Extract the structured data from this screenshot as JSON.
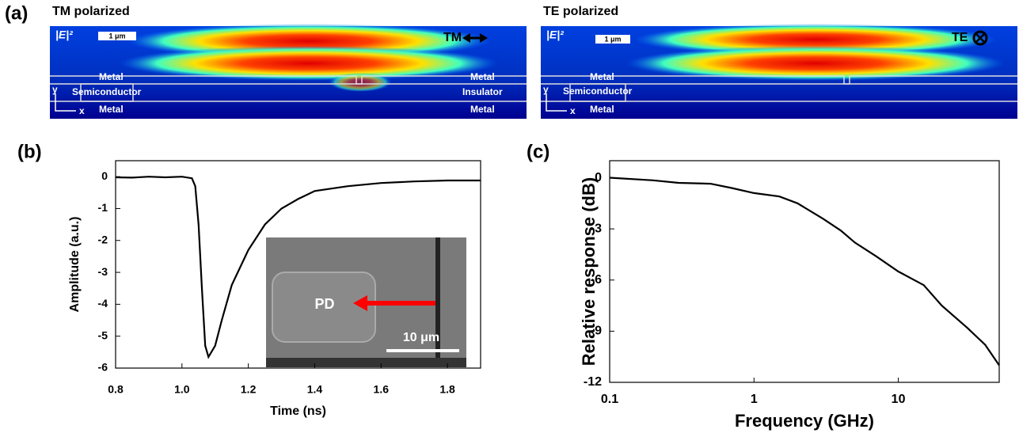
{
  "panel_a": {
    "label": "(a)",
    "maps": [
      {
        "title": "TM polarized",
        "field_label": "|E|²",
        "scale_bar": "1 μm",
        "polarization": "TM",
        "layers": {
          "top_left": "Metal",
          "top_right": "Metal",
          "mid_left": "Semiconductor",
          "mid_right": "Insulator",
          "bottom_left": "Metal",
          "bottom_right": "Metal"
        },
        "axes": {
          "y": "y",
          "x": "x"
        }
      },
      {
        "title": "TE polarized",
        "field_label": "|E|²",
        "scale_bar": "1 μm",
        "polarization": "TE",
        "layers": {
          "top_left": "Metal",
          "mid_left": "Semiconductor",
          "bottom_left": "Metal"
        },
        "axes": {
          "y": "y",
          "x": "x"
        }
      }
    ]
  },
  "chart_data": [
    {
      "type": "line",
      "panel_label": "(b)",
      "xlabel": "Time (ns)",
      "ylabel": "Amplitude (a.u.)",
      "color": "#000000",
      "x": [
        0.8,
        0.85,
        0.9,
        0.95,
        1.0,
        1.03,
        1.04,
        1.05,
        1.06,
        1.07,
        1.08,
        1.1,
        1.12,
        1.15,
        1.2,
        1.25,
        1.3,
        1.35,
        1.4,
        1.5,
        1.6,
        1.7,
        1.8,
        1.9
      ],
      "values": [
        -0.02,
        -0.03,
        0,
        -0.02,
        0,
        -0.05,
        -0.3,
        -1.5,
        -3.5,
        -5.3,
        -5.65,
        -5.3,
        -4.5,
        -3.4,
        -2.3,
        -1.5,
        -1.0,
        -0.7,
        -0.45,
        -0.3,
        -0.2,
        -0.15,
        -0.12,
        -0.12
      ],
      "xlim": [
        0.8,
        1.9
      ],
      "ylim": [
        -6,
        0.5
      ],
      "xticks": [
        0.8,
        {
          "value": 1,
          "label": "1.0"
        },
        1.2,
        1.4,
        1.6,
        1.8
      ],
      "yticks": [
        0,
        -1,
        -2,
        -3,
        -4,
        -5,
        -6
      ],
      "inset": {
        "label": "PD",
        "scale_bar": "10 μm"
      }
    },
    {
      "type": "line",
      "panel_label": "(c)",
      "xlabel": "Frequency (GHz)",
      "ylabel": "Relative response (dB)",
      "color": "#000000",
      "log_x": true,
      "x": [
        0.1,
        0.2,
        0.3,
        0.5,
        0.7,
        1,
        1.5,
        2,
        3,
        4,
        5,
        7,
        10,
        15,
        20,
        30,
        40,
        50
      ],
      "values": [
        0,
        -0.15,
        -0.3,
        -0.35,
        -0.6,
        -0.9,
        -1.1,
        -1.5,
        -2.4,
        -3.1,
        -3.8,
        -4.6,
        -5.5,
        -6.3,
        -7.5,
        -8.8,
        -9.8,
        -11
      ],
      "xlim": [
        0.1,
        50
      ],
      "ylim": [
        -12,
        1
      ],
      "xticks": [
        0.1,
        1,
        10
      ],
      "yticks": [
        0,
        -3,
        -6,
        -9,
        -12
      ]
    }
  ]
}
